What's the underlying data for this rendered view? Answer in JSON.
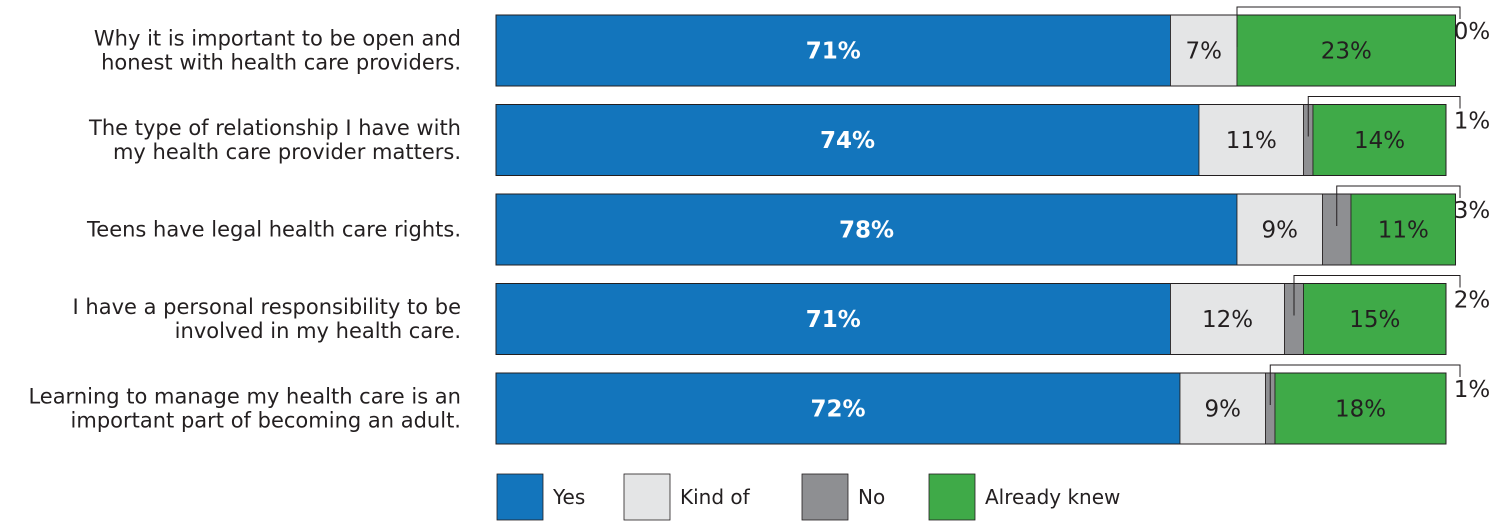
{
  "chart_data": {
    "type": "bar",
    "orientation": "horizontal",
    "stacked": true,
    "xlim": [
      0,
      100
    ],
    "grid": false,
    "legend_position": "bottom",
    "categories": [
      [
        "Why it is important to be open and",
        "honest with health care providers."
      ],
      [
        "The type of  relationship I have with",
        "my health care provider matters."
      ],
      [
        "Teens have legal health care rights."
      ],
      [
        "I have a personal responsibility to be",
        "involved in my health care."
      ],
      [
        "Learning to manage my health care is an",
        "important part of becoming an adult."
      ]
    ],
    "series": [
      {
        "name": "Yes",
        "color": "#1375bc",
        "values": [
          71,
          74,
          78,
          71,
          72
        ],
        "labels": [
          "71%",
          "74%",
          "78%",
          "71%",
          "72%"
        ]
      },
      {
        "name": "Kind of",
        "color": "#e4e5e6",
        "values": [
          7,
          11,
          9,
          12,
          9
        ],
        "labels": [
          "7%",
          "11%",
          "9%",
          "12%",
          "9%"
        ]
      },
      {
        "name": "No",
        "color": "#8e8f92",
        "values": [
          0,
          1,
          3,
          2,
          1
        ],
        "labels": [
          "0%",
          "1%",
          "3%",
          "2%",
          "1%"
        ]
      },
      {
        "name": "Already knew",
        "color": "#3faa48",
        "values": [
          23,
          14,
          11,
          15,
          18
        ],
        "labels": [
          "23%",
          "14%",
          "11%",
          "15%",
          "18%"
        ]
      }
    ]
  }
}
